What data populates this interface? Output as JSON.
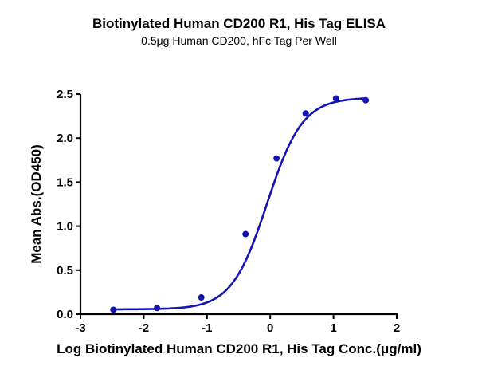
{
  "chart_data": {
    "type": "line",
    "title": "Biotinylated Human CD200 R1, His Tag ELISA",
    "subtitle": "0.5μg Human CD200, hFc Tag Per Well",
    "xlabel": "Log Biotinylated Human CD200 R1, His Tag Conc.(μg/ml)",
    "ylabel": "Mean Abs.(OD450)",
    "xlim": [
      -3,
      2
    ],
    "ylim": [
      0,
      2.5
    ],
    "x_ticks": [
      "-3",
      "-2",
      "-1",
      "0",
      "1",
      "2"
    ],
    "y_ticks": [
      "0.0",
      "0.5",
      "1.0",
      "1.5",
      "2.0",
      "2.5"
    ],
    "grid": false,
    "legend": null,
    "series": [
      {
        "name": "Biotinylated Human CD200 R1, His Tag",
        "color": "#1414b4",
        "x": [
          -2.48,
          -1.79,
          -1.09,
          -0.39,
          0.1,
          0.56,
          1.04,
          1.51
        ],
        "y": [
          0.05,
          0.07,
          0.19,
          0.91,
          1.77,
          2.28,
          2.45,
          2.43
        ],
        "fit": "4PL sigmoid"
      }
    ]
  }
}
